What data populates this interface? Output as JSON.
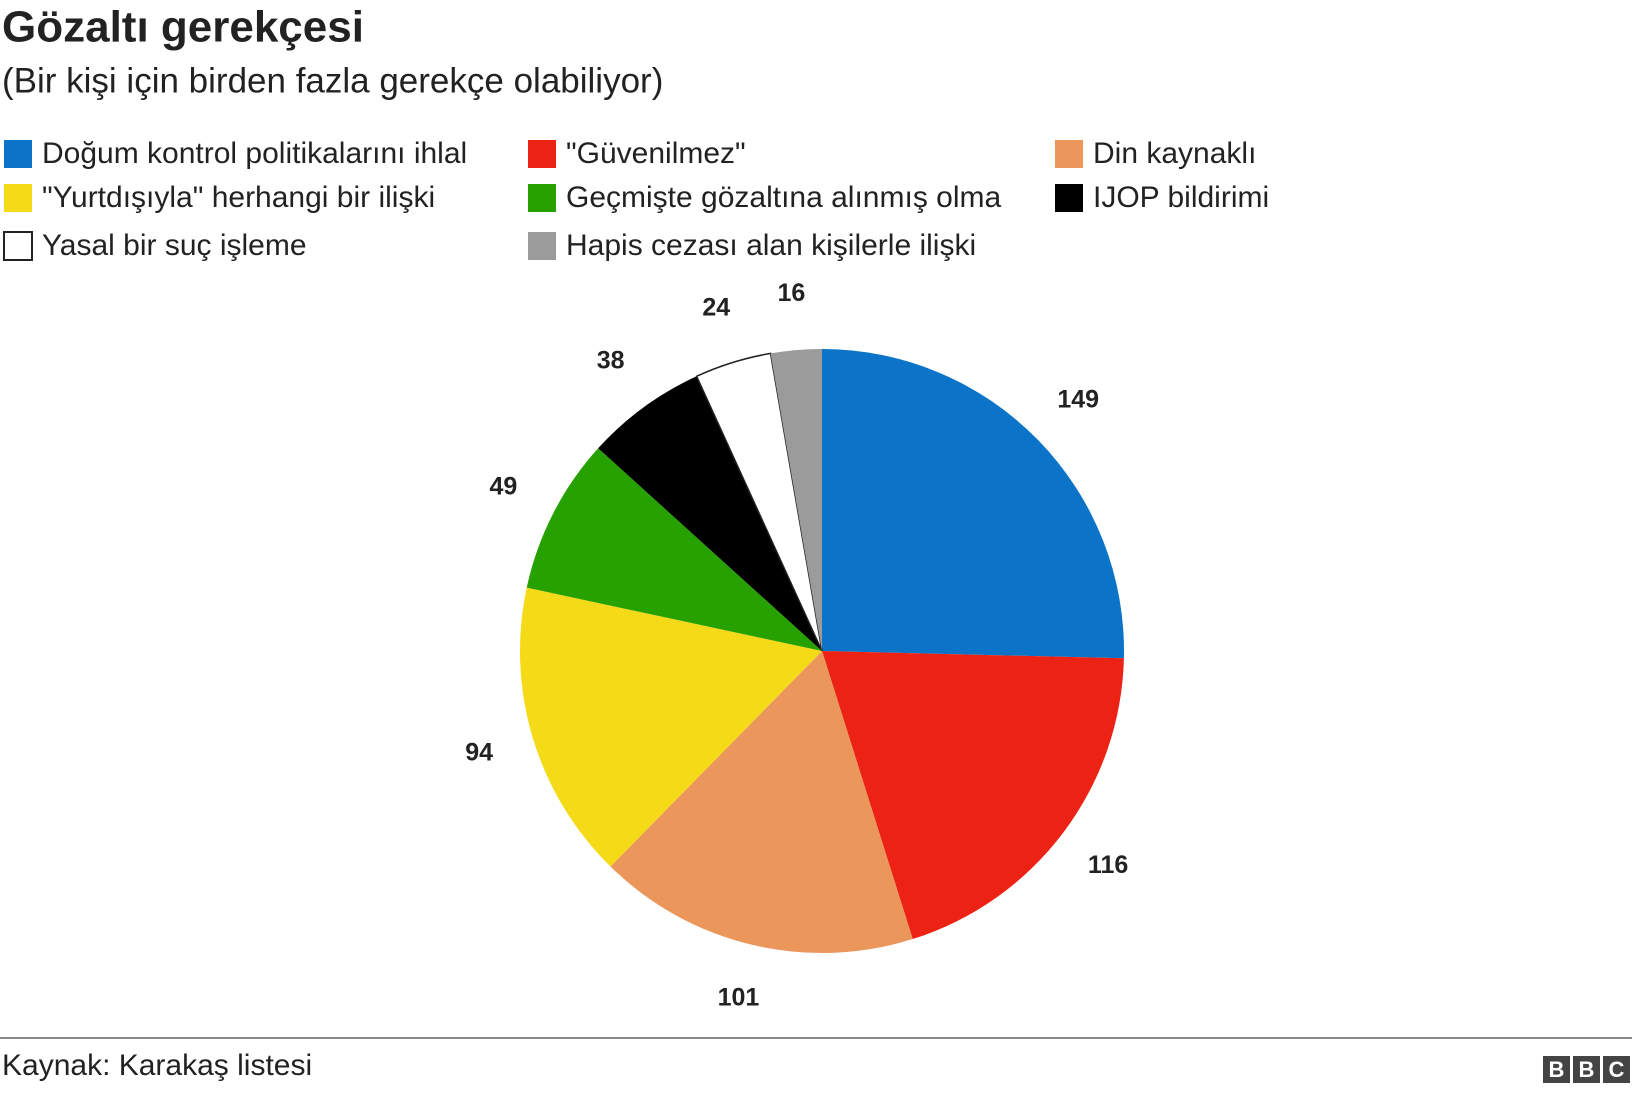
{
  "chart_data": {
    "type": "pie",
    "title": "Gözaltı gerekçesi",
    "subtitle": "(Bir kişi için birden fazla gerekçe olabiliyor)",
    "categories": [
      "Doğum kontrol politikalarını ihlal",
      "\"Güvenilmez\"",
      "Din kaynaklı",
      "\"Yurtdışıyla\" herhangi bir ilişki",
      "Geçmişte gözaltına alınmış olma",
      "IJOP bildirimi",
      "Yasal bir suç işleme",
      "Hapis cezası alan kişilerle ilişki"
    ],
    "values": [
      149,
      116,
      101,
      94,
      49,
      38,
      24,
      16
    ],
    "colors": [
      "#0b74c8",
      "#ec2214",
      "#eb975c",
      "#f5da18",
      "#27a100",
      "#000000",
      "#ffffff",
      "#9b9b9b"
    ],
    "source": "Kaynak: Karakaş listesi",
    "logo": [
      "B",
      "B",
      "C"
    ]
  }
}
